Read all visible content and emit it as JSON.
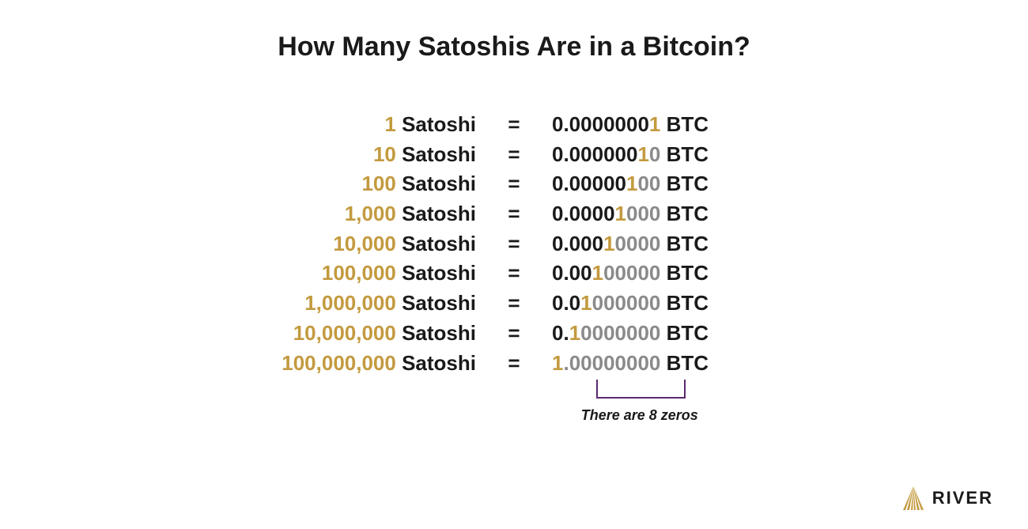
{
  "title": "How Many Satoshis Are in a Bitcoin?",
  "colors": {
    "gold": "#c39a3f",
    "black": "#1a1a1a",
    "grey": "#8a8a8a",
    "bracket": "#5b2a6f",
    "background": "#ffffff"
  },
  "typography": {
    "title_fontsize": 34,
    "body_fontsize": 26,
    "caption_fontsize": 18,
    "logo_fontsize": 22
  },
  "labels": {
    "satoshi": "Satoshi",
    "equals": "=",
    "btc": "BTC"
  },
  "rows": [
    {
      "sat_num": "1",
      "btc_pre": "0.0000000",
      "btc_sig": "1",
      "btc_post": ""
    },
    {
      "sat_num": "10",
      "btc_pre": "0.000000",
      "btc_sig": "1",
      "btc_post": "0"
    },
    {
      "sat_num": "100",
      "btc_pre": "0.00000",
      "btc_sig": "1",
      "btc_post": "00"
    },
    {
      "sat_num": "1,000",
      "btc_pre": "0.0000",
      "btc_sig": "1",
      "btc_post": "000"
    },
    {
      "sat_num": "10,000",
      "btc_pre": "0.000",
      "btc_sig": "1",
      "btc_post": "0000"
    },
    {
      "sat_num": "100,000",
      "btc_pre": "0.00",
      "btc_sig": "1",
      "btc_post": "00000"
    },
    {
      "sat_num": "1,000,000",
      "btc_pre": "0.0",
      "btc_sig": "1",
      "btc_post": "000000"
    },
    {
      "sat_num": "10,000,000",
      "btc_pre": "0.",
      "btc_sig": "1",
      "btc_post": "0000000"
    },
    {
      "sat_num": "100,000,000",
      "btc_pre": "",
      "btc_sig": "1",
      "btc_post": ".00000000"
    }
  ],
  "bracket_caption": "There are 8 zeros",
  "logo_text": "RIVER"
}
